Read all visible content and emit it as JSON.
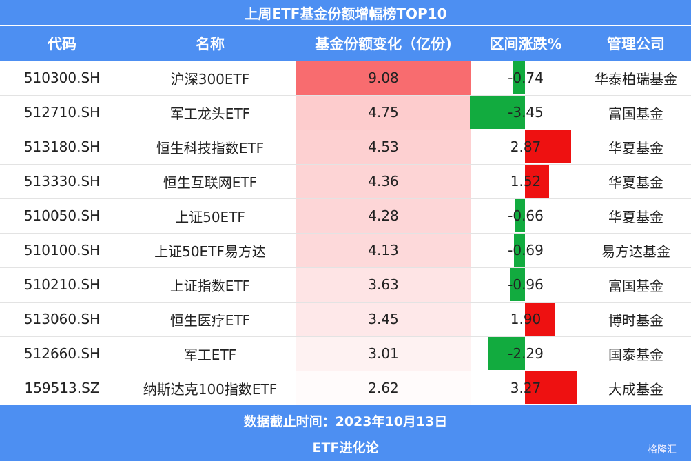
{
  "header": {
    "title": "上周ETF基金份额增幅榜TOP10"
  },
  "table": {
    "columns": [
      "代码",
      "名称",
      "基金份额变化（亿份)",
      "区间涨跌%",
      "管理公司"
    ],
    "rows": [
      [
        "510300.SH",
        "沪深300ETF",
        "9.08",
        "-0.74",
        "华泰柏瑞基金"
      ],
      [
        "512710.SH",
        "军工龙头ETF",
        "4.75",
        "-3.45",
        "富国基金"
      ],
      [
        "513180.SH",
        "恒生科技指数ETF",
        "4.53",
        "2.87",
        "华夏基金"
      ],
      [
        "513330.SH",
        "恒生互联网ETF",
        "4.36",
        "1.52",
        "华夏基金"
      ],
      [
        "510050.SH",
        "上证50ETF",
        "4.28",
        "-0.66",
        "华夏基金"
      ],
      [
        "510100.SH",
        "上证50ETF易方达",
        "4.13",
        "-0.69",
        "易方达基金"
      ],
      [
        "510210.SH",
        "上证指数ETF",
        "3.63",
        "-0.96",
        "富国基金"
      ],
      [
        "513060.SH",
        "恒生医疗ETF",
        "3.45",
        "1.90",
        "博时基金"
      ],
      [
        "512660.SH",
        "军工ETF",
        "3.01",
        "-2.29",
        "国泰基金"
      ],
      [
        "159513.SZ",
        "纳斯达克100指数ETF",
        "2.62",
        "3.27",
        "大成基金"
      ]
    ]
  },
  "footer": {
    "date_note": "数据截止时间：2023年10月13日",
    "source": "ETF进化论",
    "watermark": "格隆汇"
  }
}
